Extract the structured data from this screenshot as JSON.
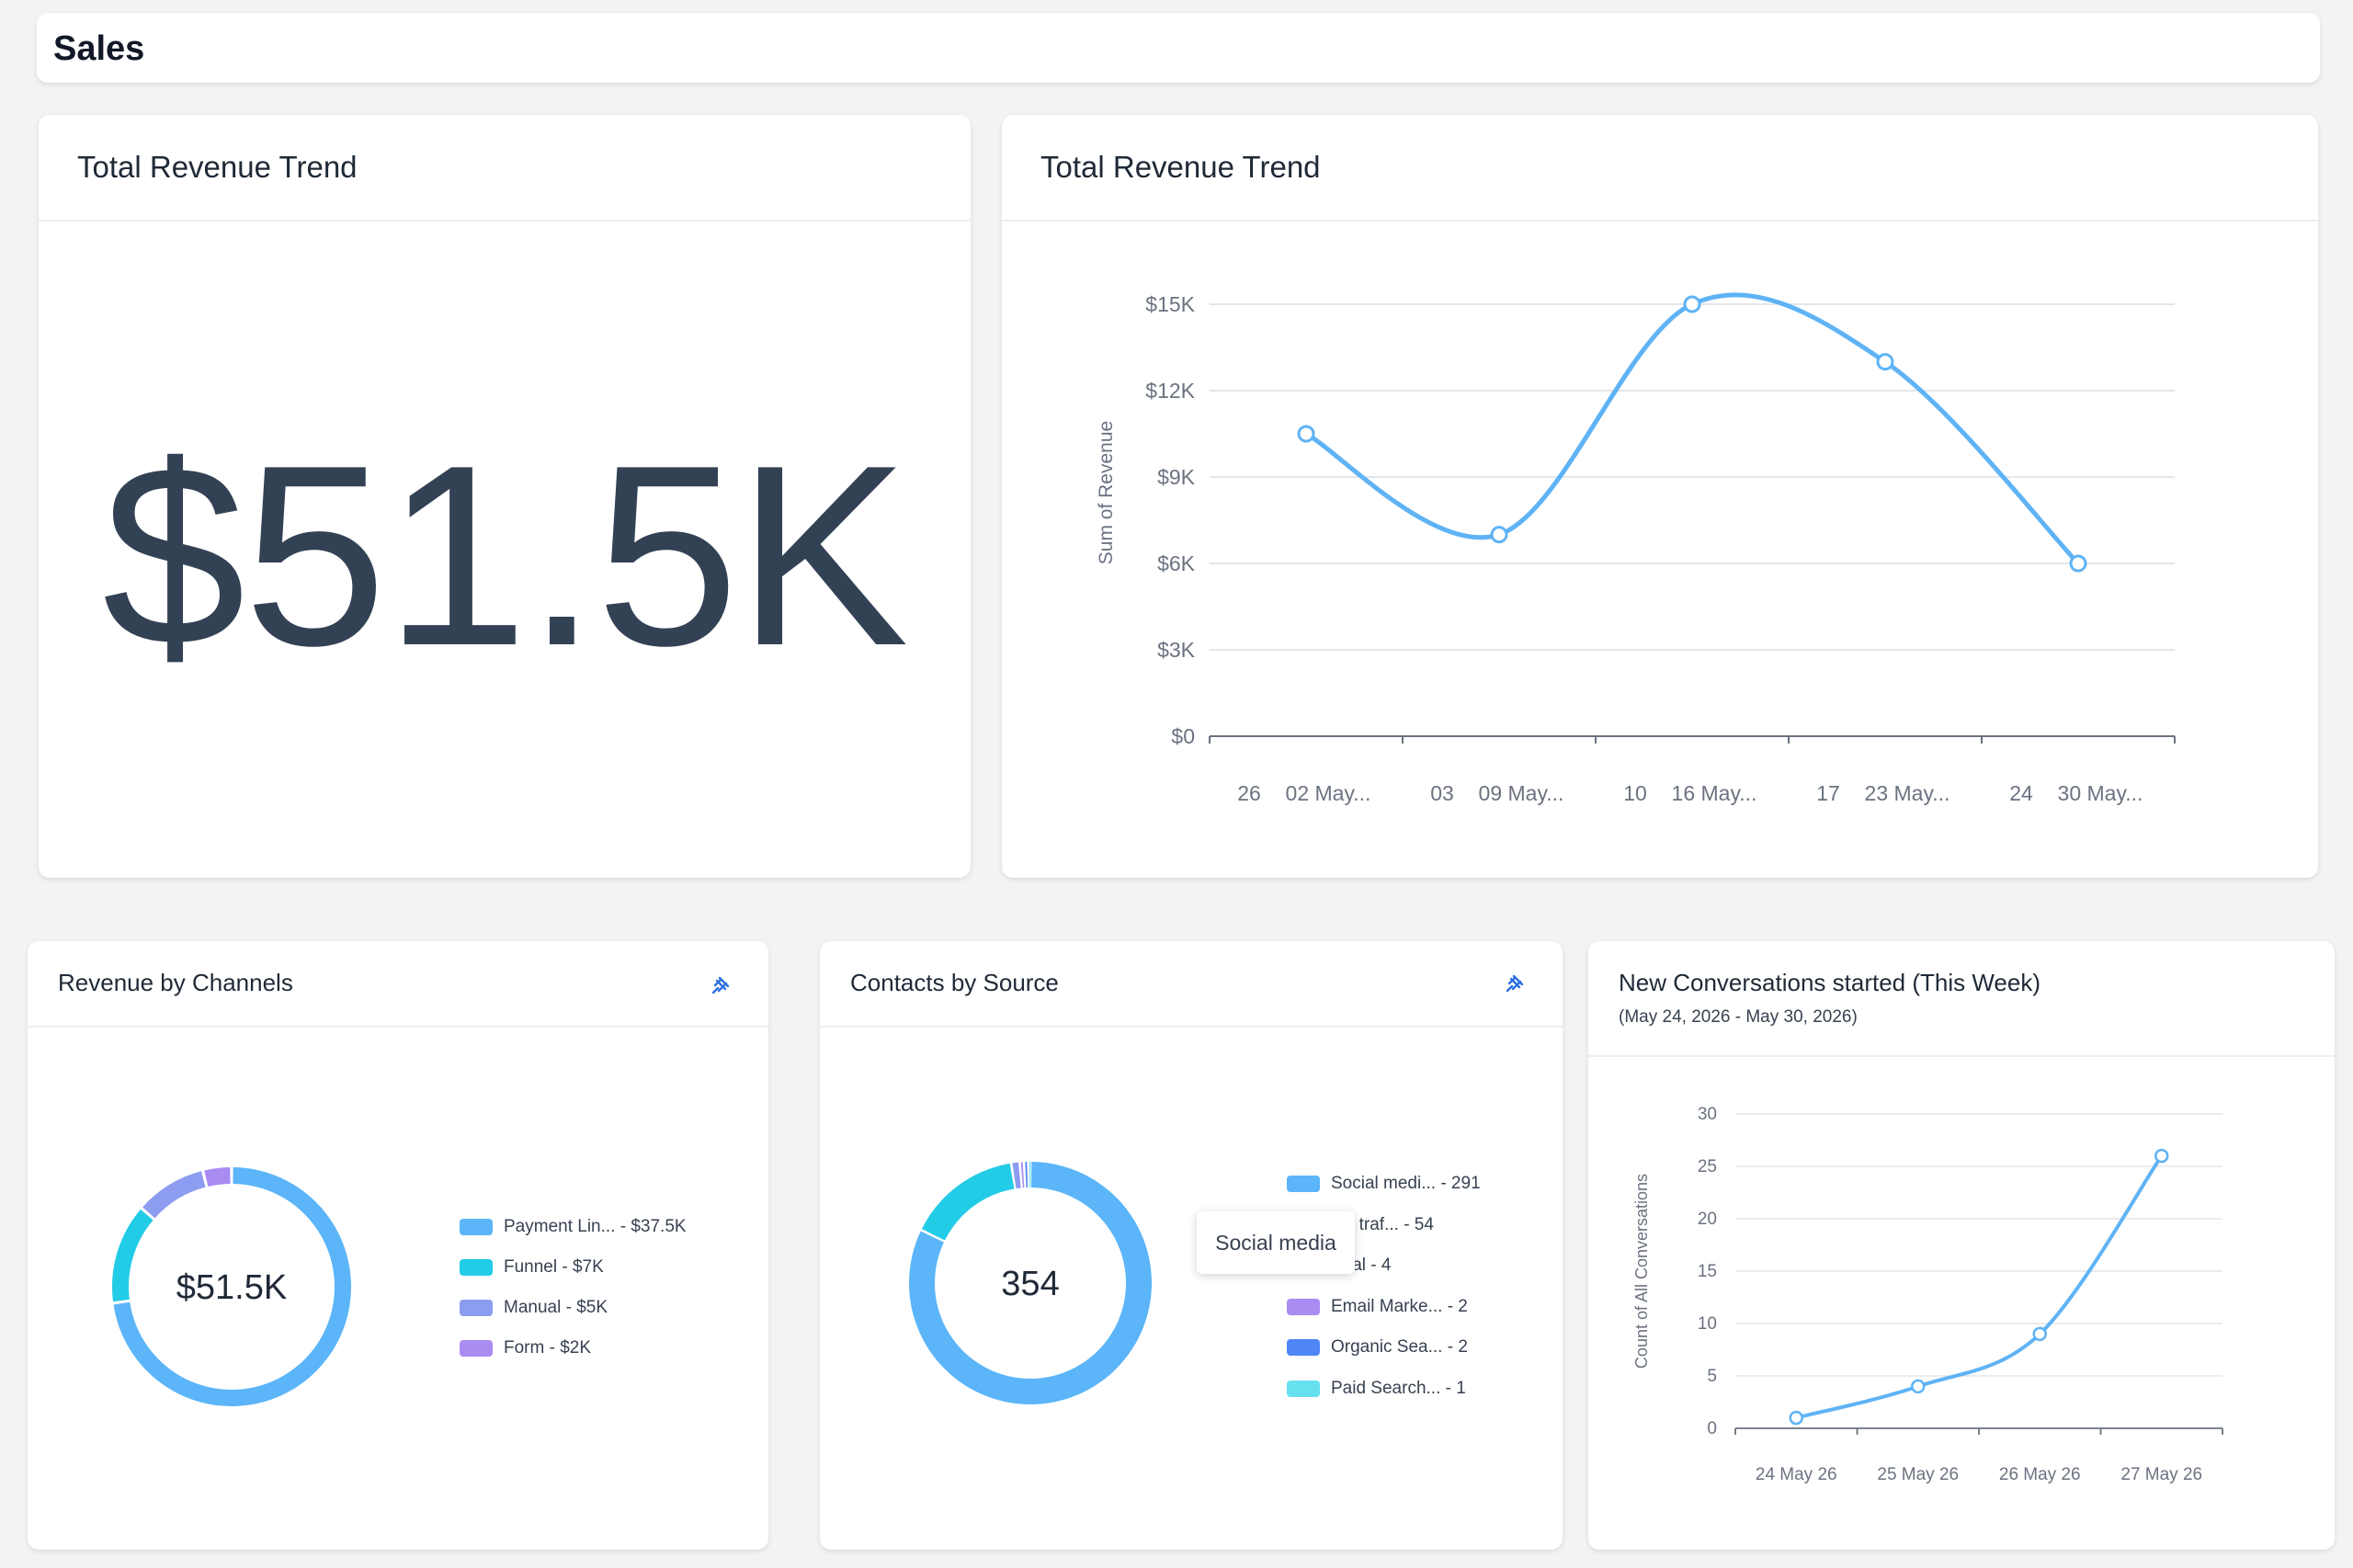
{
  "page": {
    "title": "Sales"
  },
  "kpi_card": {
    "title": "Total Revenue Trend",
    "value": "$51.5K"
  },
  "trend_card": {
    "title": "Total Revenue Trend"
  },
  "channels_card": {
    "title": "Revenue by Channels",
    "center_label": "$51.5K",
    "legend": [
      {
        "label": "Payment Lin... - $37.5K",
        "color": "#5bb5f8"
      },
      {
        "label": "Funnel - $7K",
        "color": "#22cce6"
      },
      {
        "label": "Manual - $5K",
        "color": "#8c9cf1"
      },
      {
        "label": "Form - $2K",
        "color": "#a98cf2"
      }
    ]
  },
  "contacts_card": {
    "title": "Contacts by Source",
    "center_label": "354",
    "tooltip": "Social media",
    "legend": [
      {
        "label": "Social medi... - 291",
        "color": "#5bb5f8"
      },
      {
        "label": "ect traf... - 54",
        "color": "#22cce6"
      },
      {
        "label": "erral - 4",
        "color": "#8c9cf1"
      },
      {
        "label": "Email Marke... - 2",
        "color": "#a98cf2"
      },
      {
        "label": "Organic Sea... - 2",
        "color": "#4f86f7"
      },
      {
        "label": "Paid Search... - 1",
        "color": "#67e0f0"
      }
    ]
  },
  "conversations_card": {
    "title": "New Conversations started (This Week)",
    "subtitle": "(May 24, 2026 - May 30, 2026)"
  },
  "chart_data": [
    {
      "type": "line",
      "title": "Total Revenue Trend",
      "ylabel": "Sum of Revenue",
      "x": [
        "26 02 May...",
        "03 09 May...",
        "10 16 May...",
        "17 23 May...",
        "24 30 May..."
      ],
      "x_tick_labels": [
        [
          "26",
          "02 May..."
        ],
        [
          "03",
          "09 May..."
        ],
        [
          "10",
          "16 May..."
        ],
        [
          "17",
          "23 May..."
        ],
        [
          "24",
          "30 May..."
        ]
      ],
      "y_tick_labels": [
        "$0",
        "$3K",
        "$6K",
        "$9K",
        "$12K",
        "$15K"
      ],
      "ylim": [
        0,
        15000
      ],
      "series": [
        {
          "values": [
            10500,
            7000,
            15000,
            13000,
            6000
          ],
          "color": "#5fb3f5"
        }
      ],
      "grid": true
    },
    {
      "type": "pie",
      "title": "Revenue by Channels",
      "categories": [
        "Payment Lin...",
        "Funnel",
        "Manual",
        "Form"
      ],
      "values": [
        37500,
        7000,
        5000,
        2000
      ],
      "colors": [
        "#5bb5f8",
        "#22cce6",
        "#8c9cf1",
        "#a98cf2"
      ]
    },
    {
      "type": "pie",
      "title": "Contacts by Source",
      "categories": [
        "Social medi...",
        "ect traf...",
        "erral",
        "Email Marke...",
        "Organic Sea...",
        "Paid Search..."
      ],
      "values": [
        291,
        54,
        4,
        2,
        2,
        1
      ],
      "colors": [
        "#5bb5f8",
        "#22cce6",
        "#8c9cf1",
        "#a98cf2",
        "#4f86f7",
        "#67e0f0"
      ]
    },
    {
      "type": "line",
      "title": "New Conversations started (This Week)",
      "ylabel": "Count of All Conversations",
      "x": [
        "24 May 26",
        "25 May 26",
        "26 May 26",
        "27 May 26"
      ],
      "y_tick_labels": [
        "0",
        "5",
        "10",
        "15",
        "20",
        "25",
        "30"
      ],
      "ylim": [
        0,
        30
      ],
      "series": [
        {
          "values": [
            1,
            4,
            9,
            26
          ],
          "color": "#5fb3f5"
        }
      ],
      "grid": true
    }
  ]
}
